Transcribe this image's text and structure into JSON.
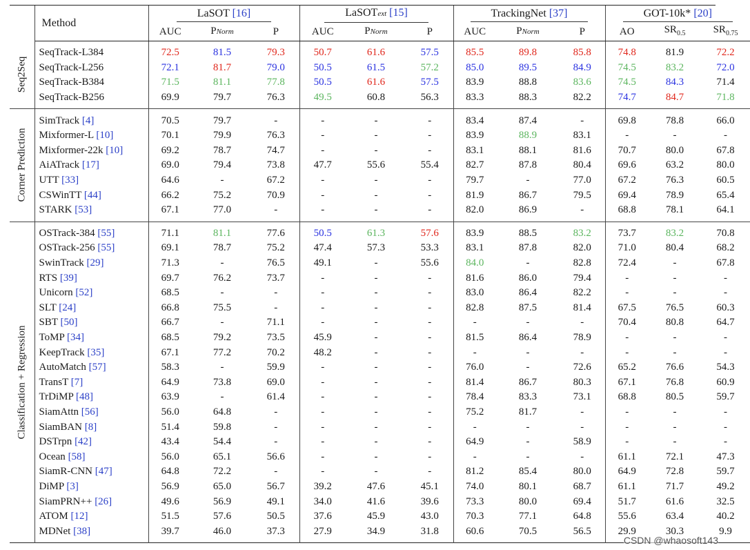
{
  "header": {
    "method": "Method",
    "groups": [
      {
        "name": "LaSOT",
        "ref": "[16]",
        "cols": [
          "AUC",
          "PNorm",
          "P"
        ]
      },
      {
        "name": "LaSOText",
        "ref": "[15]",
        "cols": [
          "AUC",
          "PNorm",
          "P"
        ]
      },
      {
        "name": "TrackingNet",
        "ref": "[37]",
        "cols": [
          "AUC",
          "PNorm",
          "P"
        ]
      },
      {
        "name": "GOT-10k*",
        "ref": "[20]",
        "cols": [
          "AO",
          "SR0.5",
          "SR0.75"
        ]
      }
    ]
  },
  "colors": {
    "red": "#e0261b",
    "blue": "#2a32e0",
    "green": "#5bb55e"
  },
  "sections": [
    {
      "label": "Seq2Seq",
      "rows": [
        {
          "name": "SeqTrack-L384",
          "ref": "",
          "vals": [
            "72.5",
            "81.5",
            "79.3",
            "50.7",
            "61.6",
            "57.5",
            "85.5",
            "89.8",
            "85.8",
            "74.8",
            "81.9",
            "72.2"
          ],
          "colors": [
            "r",
            "b",
            "r",
            "r",
            "r",
            "b",
            "r",
            "r",
            "r",
            "r",
            "",
            "r"
          ]
        },
        {
          "name": "SeqTrack-L256",
          "ref": "",
          "vals": [
            "72.1",
            "81.7",
            "79.0",
            "50.5",
            "61.5",
            "57.2",
            "85.0",
            "89.5",
            "84.9",
            "74.5",
            "83.2",
            "72.0"
          ],
          "colors": [
            "b",
            "r",
            "b",
            "b",
            "b",
            "g",
            "b",
            "b",
            "b",
            "g",
            "g",
            "b"
          ]
        },
        {
          "name": "SeqTrack-B384",
          "ref": "",
          "vals": [
            "71.5",
            "81.1",
            "77.8",
            "50.5",
            "61.6",
            "57.5",
            "83.9",
            "88.8",
            "83.6",
            "74.5",
            "84.3",
            "71.4"
          ],
          "colors": [
            "g",
            "g",
            "g",
            "b",
            "r",
            "b",
            "",
            "",
            "g",
            "g",
            "b",
            ""
          ]
        },
        {
          "name": "SeqTrack-B256",
          "ref": "",
          "vals": [
            "69.9",
            "79.7",
            "76.3",
            "49.5",
            "60.8",
            "56.3",
            "83.3",
            "88.3",
            "82.2",
            "74.7",
            "84.7",
            "71.8"
          ],
          "colors": [
            "",
            "",
            "",
            "g",
            "",
            "",
            "",
            "",
            "",
            "b",
            "r",
            "g"
          ]
        }
      ]
    },
    {
      "label": "Corner Prediction",
      "rows": [
        {
          "name": "SimTrack",
          "ref": "[4]",
          "vals": [
            "70.5",
            "79.7",
            "-",
            "-",
            "-",
            "-",
            "83.4",
            "87.4",
            "-",
            "69.8",
            "78.8",
            "66.0"
          ],
          "colors": []
        },
        {
          "name": "Mixformer-L",
          "ref": "[10]",
          "vals": [
            "70.1",
            "79.9",
            "76.3",
            "-",
            "-",
            "-",
            "83.9",
            "88.9",
            "83.1",
            "-",
            "-",
            "-"
          ],
          "colors": [
            "",
            "",
            "",
            "",
            "",
            "",
            "",
            "g"
          ]
        },
        {
          "name": "Mixformer-22k",
          "ref": "[10]",
          "vals": [
            "69.2",
            "78.7",
            "74.7",
            "-",
            "-",
            "-",
            "83.1",
            "88.1",
            "81.6",
            "70.7",
            "80.0",
            "67.8"
          ],
          "colors": []
        },
        {
          "name": "AiATrack",
          "ref": "[17]",
          "vals": [
            "69.0",
            "79.4",
            "73.8",
            "47.7",
            "55.6",
            "55.4",
            "82.7",
            "87.8",
            "80.4",
            "69.6",
            "63.2",
            "80.0"
          ],
          "colors": []
        },
        {
          "name": "UTT",
          "ref": "[33]",
          "vals": [
            "64.6",
            "-",
            "67.2",
            "-",
            "-",
            "-",
            "79.7",
            "-",
            "77.0",
            "67.2",
            "76.3",
            "60.5"
          ],
          "colors": []
        },
        {
          "name": "CSWinTT",
          "ref": "[44]",
          "vals": [
            "66.2",
            "75.2",
            "70.9",
            "-",
            "-",
            "-",
            "81.9",
            "86.7",
            "79.5",
            "69.4",
            "78.9",
            "65.4"
          ],
          "colors": []
        },
        {
          "name": "STARK",
          "ref": "[53]",
          "vals": [
            "67.1",
            "77.0",
            "-",
            "-",
            "-",
            "-",
            "82.0",
            "86.9",
            "-",
            "68.8",
            "78.1",
            "64.1"
          ],
          "colors": []
        }
      ]
    },
    {
      "label": "Classification + Regression",
      "rows": [
        {
          "name": "OSTrack-384",
          "ref": "[55]",
          "vals": [
            "71.1",
            "81.1",
            "77.6",
            "50.5",
            "61.3",
            "57.6",
            "83.9",
            "88.5",
            "83.2",
            "73.7",
            "83.2",
            "70.8"
          ],
          "colors": [
            "",
            "g",
            "",
            "b",
            "g",
            "r",
            "",
            "",
            "g",
            "",
            "g",
            ""
          ]
        },
        {
          "name": "OSTrack-256",
          "ref": "[55]",
          "vals": [
            "69.1",
            "78.7",
            "75.2",
            "47.4",
            "57.3",
            "53.3",
            "83.1",
            "87.8",
            "82.0",
            "71.0",
            "80.4",
            "68.2"
          ],
          "colors": []
        },
        {
          "name": "SwinTrack",
          "ref": "[29]",
          "vals": [
            "71.3",
            "-",
            "76.5",
            "49.1",
            "-",
            "55.6",
            "84.0",
            "-",
            "82.8",
            "72.4",
            "-",
            "67.8"
          ],
          "colors": [
            "",
            "",
            "",
            "",
            "",
            "",
            "g"
          ]
        },
        {
          "name": "RTS",
          "ref": "[39]",
          "vals": [
            "69.7",
            "76.2",
            "73.7",
            "-",
            "-",
            "-",
            "81.6",
            "86.0",
            "79.4",
            "-",
            "-",
            "-"
          ],
          "colors": []
        },
        {
          "name": "Unicorn",
          "ref": "[52]",
          "vals": [
            "68.5",
            "-",
            "-",
            "-",
            "-",
            "-",
            "83.0",
            "86.4",
            "82.2",
            "-",
            "-",
            "-"
          ],
          "colors": []
        },
        {
          "name": "SLT",
          "ref": "[24]",
          "vals": [
            "66.8",
            "75.5",
            "-",
            "-",
            "-",
            "-",
            "82.8",
            "87.5",
            "81.4",
            "67.5",
            "76.5",
            "60.3"
          ],
          "colors": []
        },
        {
          "name": "SBT",
          "ref": "[50]",
          "vals": [
            "66.7",
            "-",
            "71.1",
            "-",
            "-",
            "-",
            "-",
            "-",
            "-",
            "70.4",
            "80.8",
            "64.7"
          ],
          "colors": []
        },
        {
          "name": "ToMP",
          "ref": "[34]",
          "vals": [
            "68.5",
            "79.2",
            "73.5",
            "45.9",
            "-",
            "-",
            "81.5",
            "86.4",
            "78.9",
            "-",
            "-",
            "-"
          ],
          "colors": []
        },
        {
          "name": "KeepTrack",
          "ref": "[35]",
          "vals": [
            "67.1",
            "77.2",
            "70.2",
            "48.2",
            "-",
            "-",
            "-",
            "-",
            "-",
            "-",
            "-",
            "-"
          ],
          "colors": []
        },
        {
          "name": "AutoMatch",
          "ref": "[57]",
          "vals": [
            "58.3",
            "-",
            "59.9",
            "-",
            "-",
            "-",
            "76.0",
            "-",
            "72.6",
            "65.2",
            "76.6",
            "54.3"
          ],
          "colors": []
        },
        {
          "name": "TransT",
          "ref": "[7]",
          "vals": [
            "64.9",
            "73.8",
            "69.0",
            "-",
            "-",
            "-",
            "81.4",
            "86.7",
            "80.3",
            "67.1",
            "76.8",
            "60.9"
          ],
          "colors": []
        },
        {
          "name": "TrDiMP",
          "ref": "[48]",
          "vals": [
            "63.9",
            "-",
            "61.4",
            "-",
            "-",
            "-",
            "78.4",
            "83.3",
            "73.1",
            "68.8",
            "80.5",
            "59.7"
          ],
          "colors": []
        },
        {
          "name": "SiamAttn",
          "ref": "[56]",
          "vals": [
            "56.0",
            "64.8",
            "-",
            "-",
            "-",
            "-",
            "75.2",
            "81.7",
            "-",
            "-",
            "-",
            "-"
          ],
          "colors": []
        },
        {
          "name": "SiamBAN",
          "ref": "[8]",
          "vals": [
            "51.4",
            "59.8",
            "-",
            "-",
            "-",
            "-",
            "-",
            "-",
            "-",
            "-",
            "-",
            "-"
          ],
          "colors": []
        },
        {
          "name": "DSTrpn",
          "ref": "[42]",
          "vals": [
            "43.4",
            "54.4",
            "-",
            "-",
            "-",
            "-",
            "64.9",
            "-",
            "58.9",
            "-",
            "-",
            "-"
          ],
          "colors": []
        },
        {
          "name": "Ocean",
          "ref": "[58]",
          "vals": [
            "56.0",
            "65.1",
            "56.6",
            "-",
            "-",
            "-",
            "-",
            "-",
            "-",
            "61.1",
            "72.1",
            "47.3"
          ],
          "colors": []
        },
        {
          "name": "SiamR-CNN",
          "ref": "[47]",
          "vals": [
            "64.8",
            "72.2",
            "-",
            "-",
            "-",
            "-",
            "81.2",
            "85.4",
            "80.0",
            "64.9",
            "72.8",
            "59.7"
          ],
          "colors": []
        },
        {
          "name": "DiMP",
          "ref": "[3]",
          "vals": [
            "56.9",
            "65.0",
            "56.7",
            "39.2",
            "47.6",
            "45.1",
            "74.0",
            "80.1",
            "68.7",
            "61.1",
            "71.7",
            "49.2"
          ],
          "colors": []
        },
        {
          "name": "SiamPRN++",
          "ref": "[26]",
          "vals": [
            "49.6",
            "56.9",
            "49.1",
            "34.0",
            "41.6",
            "39.6",
            "73.3",
            "80.0",
            "69.4",
            "51.7",
            "61.6",
            "32.5"
          ],
          "colors": []
        },
        {
          "name": "ATOM",
          "ref": "[12]",
          "vals": [
            "51.5",
            "57.6",
            "50.5",
            "37.6",
            "45.9",
            "43.0",
            "70.3",
            "77.1",
            "64.8",
            "55.6",
            "63.4",
            "40.2"
          ],
          "colors": []
        },
        {
          "name": "MDNet",
          "ref": "[38]",
          "vals": [
            "39.7",
            "46.0",
            "37.3",
            "27.9",
            "34.9",
            "31.8",
            "60.6",
            "70.5",
            "56.5",
            "29.9",
            "30.3",
            "9.9"
          ],
          "colors": []
        }
      ]
    }
  ],
  "watermark": "CSDN @whaosoft143"
}
